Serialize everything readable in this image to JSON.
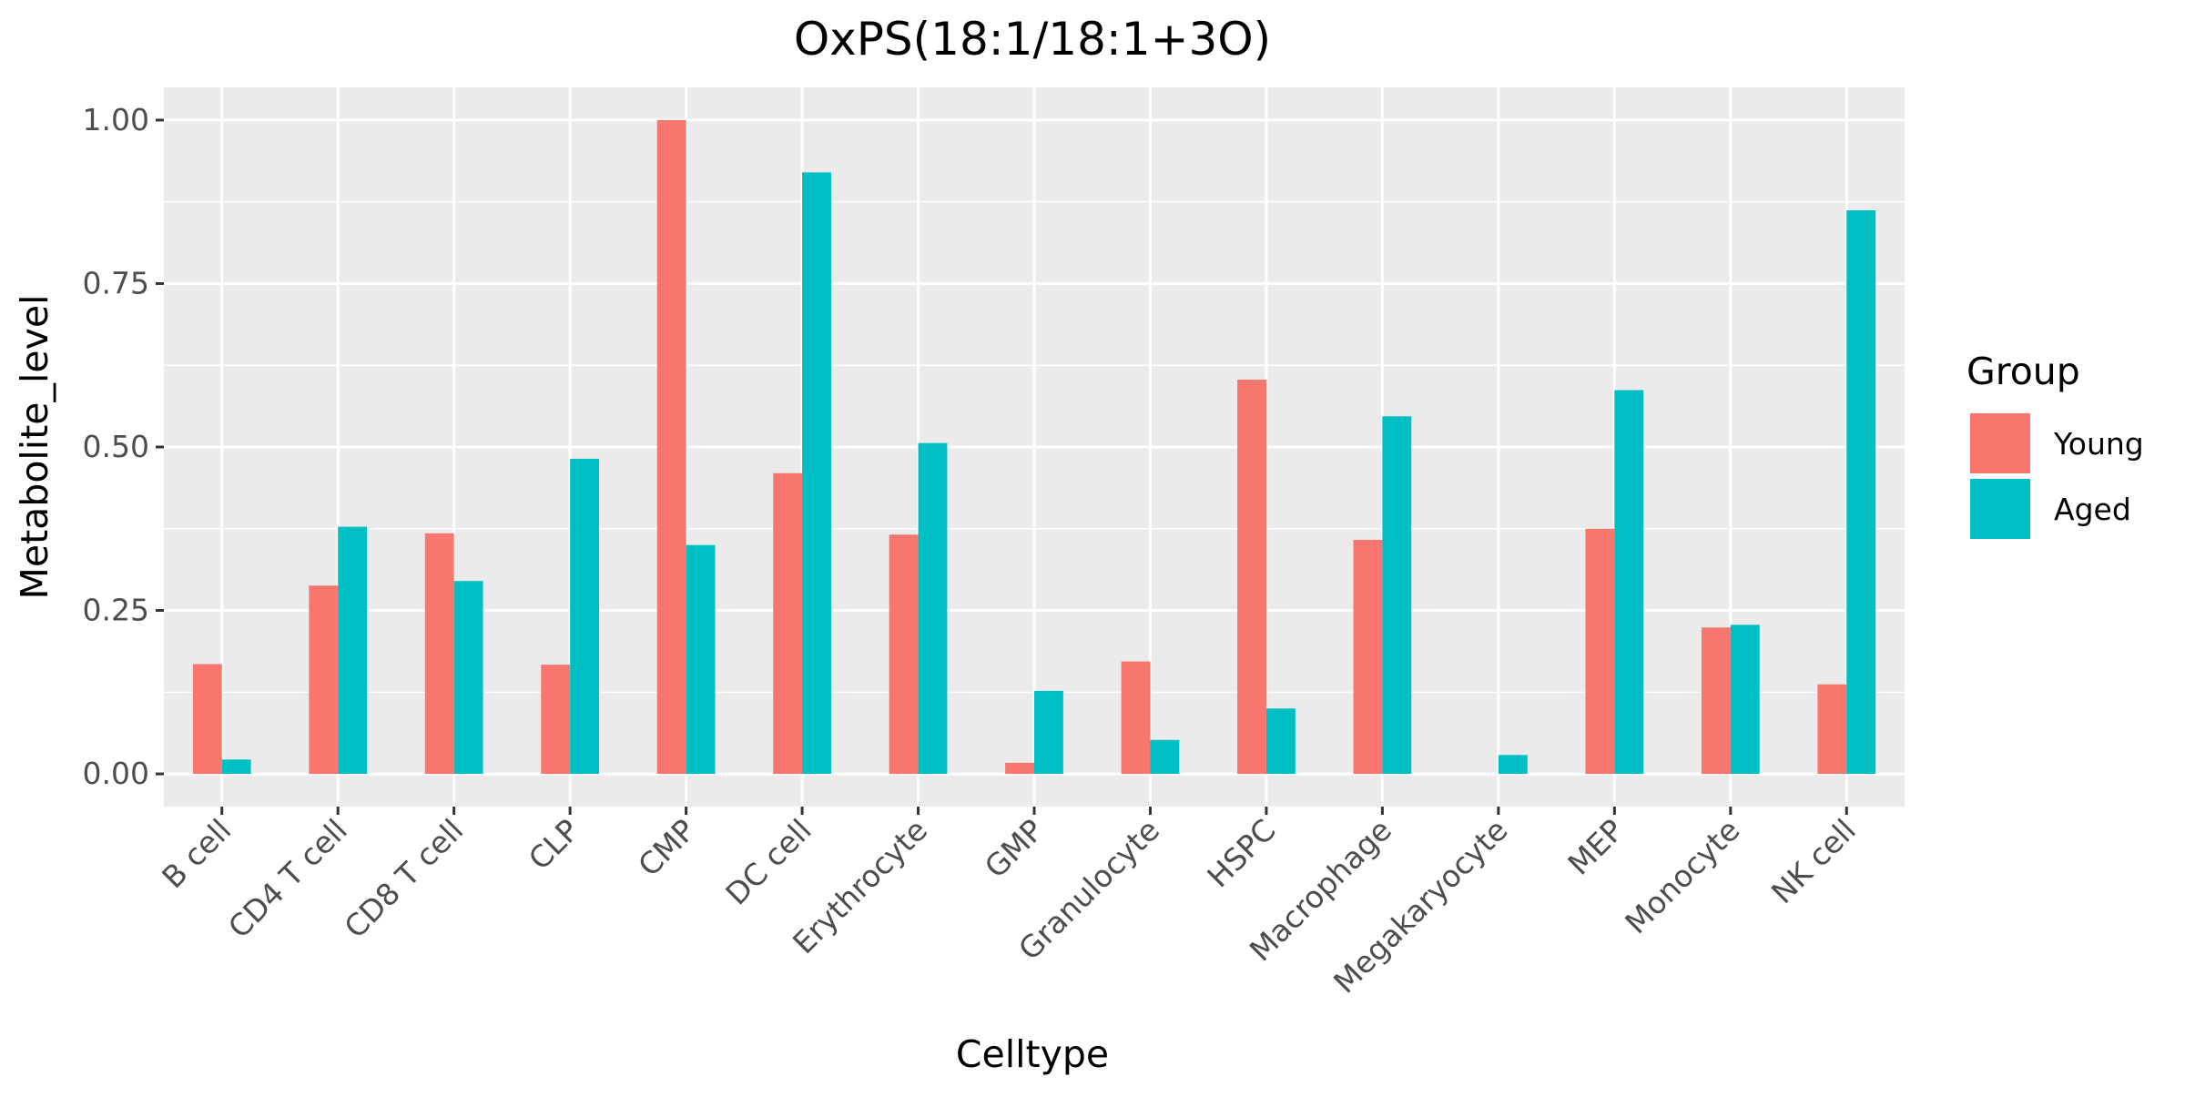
{
  "chart_data": {
    "type": "bar",
    "title": "OxPS(18:1/18:1+3O)",
    "xlabel": "Celltype",
    "ylabel": "Metabolite_level",
    "categories": [
      "B cell",
      "CD4 T cell",
      "CD8 T cell",
      "CLP",
      "CMP",
      "DC cell",
      "Erythrocyte",
      "GMP",
      "Granulocyte",
      "HSPC",
      "Macrophage",
      "Megakaryocyte",
      "MEP",
      "Monocyte",
      "NK cell"
    ],
    "series": [
      {
        "name": "Young",
        "color": "#F8766D",
        "values": [
          0.168,
          0.288,
          0.368,
          0.167,
          1.0,
          0.46,
          0.366,
          0.017,
          0.172,
          0.603,
          0.358,
          0.0,
          0.375,
          0.224,
          0.137
        ]
      },
      {
        "name": "Aged",
        "color": "#00BFC4",
        "values": [
          0.022,
          0.378,
          0.295,
          0.482,
          0.35,
          0.92,
          0.506,
          0.127,
          0.052,
          0.1,
          0.547,
          0.029,
          0.587,
          0.228,
          0.862
        ]
      }
    ],
    "ylim": [
      -0.05,
      1.05
    ],
    "yticks": [
      0.0,
      0.25,
      0.5,
      0.75,
      1.0
    ],
    "ytick_labels": [
      "0.00",
      "0.25",
      "0.50",
      "0.75",
      "1.00"
    ],
    "legend": {
      "title": "Group",
      "position": "right"
    },
    "grid": true,
    "panel_color": "#EBEBEB"
  }
}
